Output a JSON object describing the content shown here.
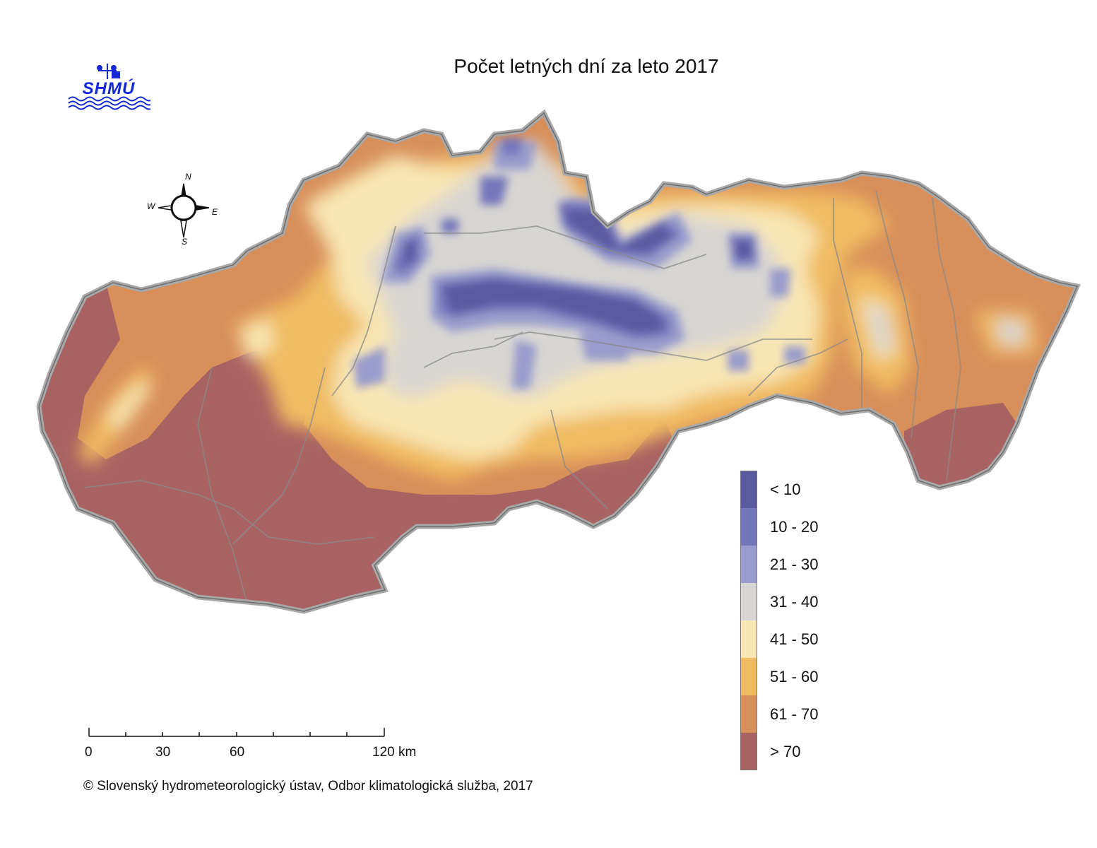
{
  "title": "Počet letných dní za leto 2017",
  "logo": {
    "text": "SHMÚ",
    "icon": "shmu-logo-icon",
    "color": "#1428d8"
  },
  "compass": {
    "n": "N",
    "s": "S",
    "e": "E",
    "w": "W"
  },
  "legend": [
    {
      "label": "< 10",
      "color": "#5a5aa0"
    },
    {
      "label": "10 - 20",
      "color": "#7476bb"
    },
    {
      "label": "21 - 30",
      "color": "#9a9ccd"
    },
    {
      "label": "31 - 40",
      "color": "#d8d6d2"
    },
    {
      "label": "41 - 50",
      "color": "#f8e6b4"
    },
    {
      "label": "51 - 60",
      "color": "#f0bc62"
    },
    {
      "label": "61 - 70",
      "color": "#d88f5a"
    },
    {
      "label": "> 70",
      "color": "#a96262"
    }
  ],
  "scalebar": {
    "ticks": [
      "0",
      "30",
      "60",
      "120 km"
    ]
  },
  "copyright": "© Slovenský hydrometeorologický ústav, Odbor klimatologická služba, 2017"
}
